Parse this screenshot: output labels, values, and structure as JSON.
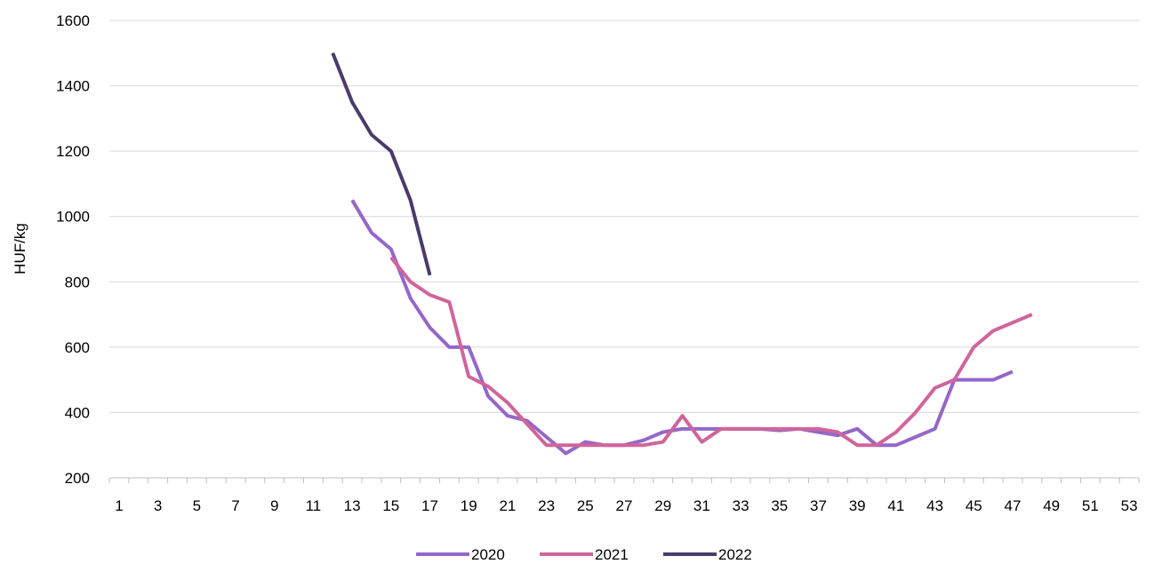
{
  "chart_data": {
    "type": "line",
    "title": "",
    "xlabel": "",
    "ylabel": "HUF/kg",
    "xlim": [
      1,
      53
    ],
    "ylim": [
      200,
      1600
    ],
    "y_ticks": [
      200,
      400,
      600,
      800,
      1000,
      1200,
      1400,
      1600
    ],
    "x_tick_labels": [
      1,
      3,
      5,
      7,
      9,
      11,
      13,
      15,
      17,
      19,
      21,
      23,
      25,
      27,
      29,
      31,
      33,
      35,
      37,
      39,
      41,
      43,
      45,
      47,
      49,
      51,
      53
    ],
    "grid": "horizontal",
    "legend": "bottom",
    "series": [
      {
        "name": "2020",
        "color": "#9467c9",
        "points": [
          [
            13,
            1050
          ],
          [
            14,
            950
          ],
          [
            15,
            900
          ],
          [
            16,
            750
          ],
          [
            17,
            660
          ],
          [
            18,
            600
          ],
          [
            19,
            600
          ],
          [
            20,
            450
          ],
          [
            21,
            390
          ],
          [
            22,
            375
          ],
          [
            23,
            325
          ],
          [
            24,
            275
          ],
          [
            25,
            310
          ],
          [
            26,
            300
          ],
          [
            27,
            300
          ],
          [
            28,
            315
          ],
          [
            29,
            340
          ],
          [
            30,
            350
          ],
          [
            31,
            350
          ],
          [
            32,
            350
          ],
          [
            33,
            350
          ],
          [
            34,
            350
          ],
          [
            35,
            345
          ],
          [
            36,
            350
          ],
          [
            37,
            340
          ],
          [
            38,
            330
          ],
          [
            39,
            350
          ],
          [
            40,
            300
          ],
          [
            41,
            300
          ],
          [
            42,
            325
          ],
          [
            43,
            350
          ],
          [
            44,
            500
          ],
          [
            45,
            500
          ],
          [
            46,
            500
          ],
          [
            47,
            525
          ]
        ]
      },
      {
        "name": "2021",
        "color": "#d0659a",
        "points": [
          [
            15,
            875
          ],
          [
            16,
            800
          ],
          [
            17,
            760
          ],
          [
            18,
            738
          ],
          [
            19,
            510
          ],
          [
            20,
            480
          ],
          [
            21,
            430
          ],
          [
            22,
            365
          ],
          [
            23,
            300
          ],
          [
            24,
            300
          ],
          [
            25,
            300
          ],
          [
            26,
            300
          ],
          [
            27,
            300
          ],
          [
            28,
            300
          ],
          [
            29,
            310
          ],
          [
            30,
            390
          ],
          [
            31,
            310
          ],
          [
            32,
            350
          ],
          [
            33,
            350
          ],
          [
            34,
            350
          ],
          [
            35,
            350
          ],
          [
            36,
            350
          ],
          [
            37,
            350
          ],
          [
            38,
            340
          ],
          [
            39,
            300
          ],
          [
            40,
            300
          ],
          [
            41,
            340
          ],
          [
            42,
            400
          ],
          [
            43,
            475
          ],
          [
            44,
            500
          ],
          [
            45,
            600
          ],
          [
            46,
            650
          ],
          [
            47,
            675
          ],
          [
            48,
            700
          ]
        ]
      },
      {
        "name": "2022",
        "color": "#4a3b6b",
        "points": [
          [
            12,
            1500
          ],
          [
            13,
            1350
          ],
          [
            14,
            1250
          ],
          [
            15,
            1200
          ],
          [
            16,
            1050
          ],
          [
            17,
            820
          ]
        ]
      }
    ]
  }
}
